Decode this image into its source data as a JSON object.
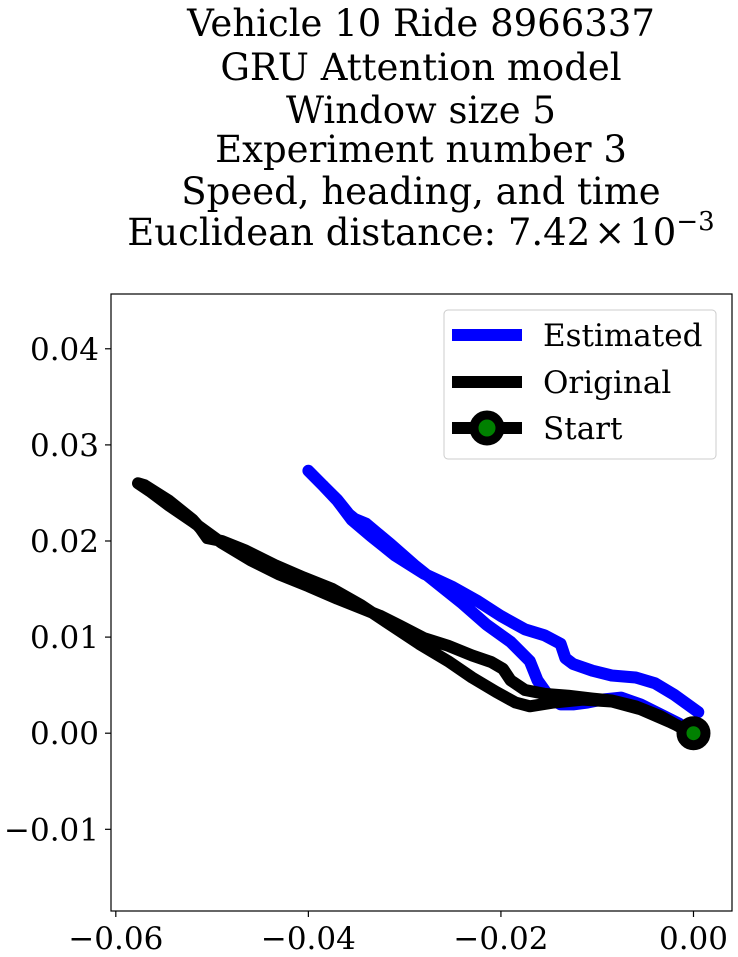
{
  "chart_data": {
    "type": "line",
    "title_lines": [
      "Vehicle 10 Ride 8966337",
      "GRU Attention model",
      "Window size 5",
      "Experiment number 3",
      "Speed, heading, and time"
    ],
    "title_distance_prefix": "Euclidean distance: 7.42",
    "title_distance_times": "×",
    "title_distance_base": "10",
    "title_distance_exponent": "−3",
    "xlabel": "",
    "ylabel": "",
    "xlim": [
      -0.0605,
      0.004
    ],
    "ylim": [
      -0.0185,
      0.0457
    ],
    "xticks": [
      -0.06,
      -0.04,
      -0.02,
      0.0
    ],
    "xtick_labels": [
      "−0.06",
      "−0.04",
      "−0.02",
      "0.00"
    ],
    "yticks": [
      -0.01,
      0.0,
      0.01,
      0.02,
      0.03,
      0.04
    ],
    "ytick_labels": [
      "−0.01",
      "0.00",
      "0.01",
      "0.02",
      "0.03",
      "0.04"
    ],
    "grid": false,
    "legend_position": "top-right",
    "series": [
      {
        "name": "Estimated",
        "color": "#0000ff",
        "points": [
          [
            0.0005,
            0.0022
          ],
          [
            -0.002,
            0.004
          ],
          [
            -0.004,
            0.0052
          ],
          [
            -0.006,
            0.0058
          ],
          [
            -0.0085,
            0.006
          ],
          [
            -0.0105,
            0.0065
          ],
          [
            -0.0125,
            0.0072
          ],
          [
            -0.0133,
            0.0078
          ],
          [
            -0.0138,
            0.0093
          ],
          [
            -0.0155,
            0.0102
          ],
          [
            -0.0175,
            0.0108
          ],
          [
            -0.02,
            0.0122
          ],
          [
            -0.0225,
            0.0138
          ],
          [
            -0.025,
            0.0152
          ],
          [
            -0.028,
            0.0166
          ],
          [
            -0.031,
            0.0185
          ],
          [
            -0.0335,
            0.0205
          ],
          [
            -0.0355,
            0.0222
          ],
          [
            -0.037,
            0.0242
          ],
          [
            -0.0385,
            0.0258
          ],
          [
            -0.04,
            0.0273
          ],
          [
            -0.0385,
            0.0258
          ],
          [
            -0.037,
            0.0243
          ],
          [
            -0.0358,
            0.0228
          ],
          [
            -0.0352,
            0.0223
          ],
          [
            -0.034,
            0.0218
          ],
          [
            -0.0315,
            0.0197
          ],
          [
            -0.029,
            0.0175
          ],
          [
            -0.0265,
            0.0155
          ],
          [
            -0.024,
            0.0135
          ],
          [
            -0.0215,
            0.0113
          ],
          [
            -0.019,
            0.0095
          ],
          [
            -0.017,
            0.0075
          ],
          [
            -0.0162,
            0.0055
          ],
          [
            -0.015,
            0.0038
          ],
          [
            -0.0138,
            0.003
          ],
          [
            -0.0125,
            0.003
          ],
          [
            -0.011,
            0.0032
          ],
          [
            -0.0095,
            0.0035
          ],
          [
            -0.0075,
            0.0037
          ],
          [
            -0.0055,
            0.003
          ],
          [
            -0.0035,
            0.002
          ],
          [
            -0.0015,
            0.001
          ],
          [
            0.0,
            0.0
          ]
        ]
      },
      {
        "name": "Original",
        "color": "#000000",
        "points": [
          [
            0.0,
            0.0
          ],
          [
            -0.0025,
            0.0012
          ],
          [
            -0.0055,
            0.0025
          ],
          [
            -0.0085,
            0.0033
          ],
          [
            -0.0115,
            0.0035
          ],
          [
            -0.0145,
            0.0032
          ],
          [
            -0.017,
            0.0028
          ],
          [
            -0.0185,
            0.0032
          ],
          [
            -0.0205,
            0.0043
          ],
          [
            -0.023,
            0.0058
          ],
          [
            -0.0255,
            0.0075
          ],
          [
            -0.0285,
            0.0093
          ],
          [
            -0.0315,
            0.0113
          ],
          [
            -0.0345,
            0.0133
          ],
          [
            -0.0375,
            0.015
          ],
          [
            -0.0405,
            0.0162
          ],
          [
            -0.0435,
            0.0175
          ],
          [
            -0.0465,
            0.019
          ],
          [
            -0.049,
            0.02
          ],
          [
            -0.0505,
            0.0203
          ],
          [
            -0.0512,
            0.0213
          ],
          [
            -0.052,
            0.0222
          ],
          [
            -0.0545,
            0.0242
          ],
          [
            -0.057,
            0.0258
          ],
          [
            -0.0577,
            0.026
          ],
          [
            -0.0565,
            0.0252
          ],
          [
            -0.0545,
            0.0237
          ],
          [
            -0.052,
            0.022
          ],
          [
            -0.049,
            0.0198
          ],
          [
            -0.046,
            0.018
          ],
          [
            -0.043,
            0.0165
          ],
          [
            -0.04,
            0.0153
          ],
          [
            -0.037,
            0.014
          ],
          [
            -0.034,
            0.0128
          ],
          [
            -0.0325,
            0.0122
          ],
          [
            -0.0305,
            0.0112
          ],
          [
            -0.028,
            0.0099
          ],
          [
            -0.0255,
            0.0091
          ],
          [
            -0.023,
            0.0081
          ],
          [
            -0.021,
            0.0074
          ],
          [
            -0.0198,
            0.0067
          ],
          [
            -0.019,
            0.0055
          ],
          [
            -0.0175,
            0.0045
          ],
          [
            -0.0155,
            0.0041
          ],
          [
            -0.013,
            0.0039
          ],
          [
            -0.0105,
            0.0036
          ],
          [
            -0.0085,
            0.0034
          ],
          [
            -0.006,
            0.0028
          ],
          [
            -0.0035,
            0.0018
          ],
          [
            -0.0015,
            0.0007
          ],
          [
            0.0,
            0.0
          ]
        ]
      }
    ],
    "start_marker": {
      "name": "Start",
      "point": [
        0.0,
        0.0
      ],
      "edge_color": "#000000",
      "face_color": "#008000"
    }
  }
}
